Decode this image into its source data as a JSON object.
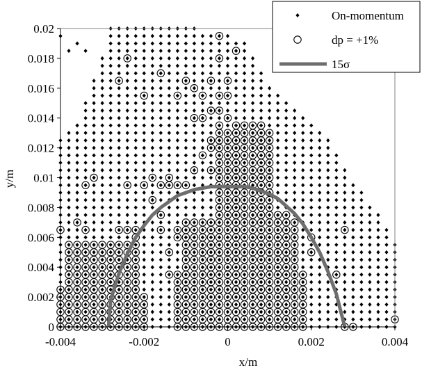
{
  "chart_data": {
    "type": "scatter",
    "title": "",
    "xlabel": "x/m",
    "ylabel": "y/m",
    "xlim": [
      -0.004,
      0.004
    ],
    "ylim": [
      0,
      0.02
    ],
    "grid": false,
    "legend_position": "top-right",
    "x_ticks": [
      "-0.004",
      "-0.002",
      "0",
      "0.002",
      "0.004"
    ],
    "y_ticks": [
      "0",
      "0.002",
      "0.004",
      "0.006",
      "0.008",
      "0.01",
      "0.012",
      "0.014",
      "0.016",
      "0.018",
      "0.02"
    ],
    "series": [
      {
        "name": "On-momentum",
        "marker": "diamond",
        "color": "#000000",
        "region_samples": "grid of points, dx=0.0002 m, dy=0.0005 m, filling the region under the envelope",
        "envelope": {
          "x": [
            -0.004,
            -0.0036,
            -0.0032,
            -0.0028,
            -0.0024,
            -0.002,
            -0.0016,
            -0.0012,
            -0.0008,
            -0.0004,
            0,
            0.0004,
            0.0008,
            0.0012,
            0.0016,
            0.002,
            0.0024,
            0.0028,
            0.0032,
            0.0036,
            0.004
          ],
          "y_max": [
            0.0125,
            0.0135,
            0.0165,
            0.02,
            0.02,
            0.02,
            0.02,
            0.02,
            0.02,
            0.0195,
            0.0195,
            0.019,
            0.017,
            0.0155,
            0.0145,
            0.0135,
            0.0125,
            0.0105,
            0.009,
            0.0075,
            0.0055
          ]
        },
        "extra_points": [
          {
            "x": -0.004,
            "y": 0.0195
          },
          {
            "x": -0.0038,
            "y": 0.0185
          },
          {
            "x": -0.0036,
            "y": 0.019
          },
          {
            "x": -0.0034,
            "y": 0.0185
          },
          {
            "x": -0.0024,
            "y": 0.019
          }
        ]
      },
      {
        "name": "dp = +1%",
        "marker": "circle",
        "color": "#000000",
        "blocks": [
          {
            "x": [
              -0.0038,
              -0.0024
            ],
            "y": [
              0,
              0.0055
            ],
            "dx": 0.0002,
            "dy": 0.0005
          },
          {
            "x": [
              -0.004,
              -0.004
            ],
            "y": [
              0,
              0.0025
            ],
            "dx": 0.0002,
            "dy": 0.0005
          },
          {
            "x": [
              -0.0022,
              -0.0022
            ],
            "y": [
              0,
              0.0065
            ],
            "dx": 0.0002,
            "dy": 0.0005
          },
          {
            "x": [
              -0.002,
              -0.002
            ],
            "y": [
              0,
              0.002
            ],
            "dx": 0.0002,
            "dy": 0.0005
          },
          {
            "x": [
              -0.0012,
              -0.0012
            ],
            "y": [
              0,
              0.0035
            ],
            "dx": 0.0002,
            "dy": 0.0005
          },
          {
            "x": [
              -0.001,
              0.0016
            ],
            "y": [
              0,
              0.007
            ],
            "dx": 0.0002,
            "dy": 0.0005
          },
          {
            "x": [
              -0.0002,
              0.001
            ],
            "y": [
              0.0075,
              0.013
            ],
            "dx": 0.0002,
            "dy": 0.0005
          },
          {
            "x": [
              0.0002,
              0.0008
            ],
            "y": [
              0.0135,
              0.0135
            ],
            "dx": 0.0002,
            "dy": 0.0005
          },
          {
            "x": [
              0.0018,
              0.0018
            ],
            "y": [
              0,
              0.0035
            ],
            "dx": 0.0002,
            "dy": 0.0005
          }
        ],
        "points": [
          {
            "x": -0.004,
            "y": 0.0065
          },
          {
            "x": -0.0036,
            "y": 0.007
          },
          {
            "x": -0.0034,
            "y": 0.0065
          },
          {
            "x": -0.0034,
            "y": 0.0095
          },
          {
            "x": -0.0032,
            "y": 0.01
          },
          {
            "x": -0.0026,
            "y": 0.0065
          },
          {
            "x": -0.0024,
            "y": 0.0065
          },
          {
            "x": -0.0024,
            "y": 0.0095
          },
          {
            "x": -0.002,
            "y": 0.0095
          },
          {
            "x": -0.0018,
            "y": 0.0085
          },
          {
            "x": -0.0018,
            "y": 0.01
          },
          {
            "x": -0.0016,
            "y": 0.0095
          },
          {
            "x": -0.0016,
            "y": 0.0075
          },
          {
            "x": -0.0016,
            "y": 0.0065
          },
          {
            "x": -0.0014,
            "y": 0.01
          },
          {
            "x": -0.0014,
            "y": 0.0095
          },
          {
            "x": -0.0014,
            "y": 0.005
          },
          {
            "x": -0.0014,
            "y": 0.0035
          },
          {
            "x": -0.0012,
            "y": 0.0095
          },
          {
            "x": -0.0012,
            "y": 0.0065
          },
          {
            "x": -0.0012,
            "y": 0.006
          },
          {
            "x": -0.001,
            "y": 0.0095
          },
          {
            "x": -0.0008,
            "y": 0.0105
          },
          {
            "x": -0.0006,
            "y": 0.0115
          },
          {
            "x": -0.0006,
            "y": 0.014
          },
          {
            "x": -0.0006,
            "y": 0.0155
          },
          {
            "x": -0.0004,
            "y": 0.0105
          },
          {
            "x": -0.0004,
            "y": 0.012
          },
          {
            "x": -0.0004,
            "y": 0.0125
          },
          {
            "x": -0.0004,
            "y": 0.0145
          },
          {
            "x": -0.0004,
            "y": 0.0165
          },
          {
            "x": -0.0002,
            "y": 0.0135
          },
          {
            "x": -0.0002,
            "y": 0.0145
          },
          {
            "x": -0.0002,
            "y": 0.0155
          },
          {
            "x": -0.0002,
            "y": 0.018
          },
          {
            "x": -0.0002,
            "y": 0.0195
          },
          {
            "x": 0,
            "y": 0.0165
          },
          {
            "x": 0,
            "y": 0.0155
          },
          {
            "x": 0,
            "y": 0.014
          },
          {
            "x": 0.0002,
            "y": 0.0185
          },
          {
            "x": 0.0012,
            "y": 0.0075
          },
          {
            "x": 0.0014,
            "y": 0.0075
          },
          {
            "x": 0.002,
            "y": 0.005
          },
          {
            "x": 0.002,
            "y": 0.006
          },
          {
            "x": 0.0026,
            "y": 0.0035
          },
          {
            "x": 0.0028,
            "y": 0.0065
          },
          {
            "x": 0.0028,
            "y": 0
          },
          {
            "x": 0.003,
            "y": 0
          },
          {
            "x": 0.004,
            "y": 0.0005
          },
          {
            "x": -0.001,
            "y": 0.0165
          },
          {
            "x": -0.0008,
            "y": 0.014
          },
          {
            "x": -0.0008,
            "y": 0.016
          },
          {
            "x": -0.0012,
            "y": 0.0155
          },
          {
            "x": -0.0016,
            "y": 0.017
          },
          {
            "x": -0.002,
            "y": 0.0155
          },
          {
            "x": -0.0024,
            "y": 0.018
          },
          {
            "x": -0.0026,
            "y": 0.0165
          }
        ]
      },
      {
        "name": "15σ",
        "marker": "line",
        "color": "#6e6e6e",
        "x": [
          -0.00285,
          -0.0028,
          -0.0026,
          -0.0024,
          -0.0022,
          -0.002,
          -0.0018,
          -0.0016,
          -0.0014,
          -0.0012,
          -0.001,
          -0.0008,
          -0.0006,
          -0.0004,
          -0.0002,
          0,
          0.0002,
          0.0004,
          0.0006,
          0.0008,
          0.001,
          0.0012,
          0.0014,
          0.0016,
          0.0018,
          0.002,
          0.0022,
          0.0024,
          0.0026,
          0.0028
        ],
        "y": [
          0,
          0.0018,
          0.0036,
          0.0049,
          0.006,
          0.0068,
          0.0075,
          0.008,
          0.0084,
          0.0088,
          0.009,
          0.0092,
          0.0093,
          0.0094,
          0.0094,
          0.0094,
          0.0094,
          0.0094,
          0.0093,
          0.0091,
          0.0089,
          0.0086,
          0.0081,
          0.0076,
          0.0069,
          0.006,
          0.005,
          0.0037,
          0.0022,
          0
        ]
      }
    ]
  },
  "legend": {
    "items": [
      {
        "label": "On-momentum",
        "marker": "diamond"
      },
      {
        "label": "dp = +1%",
        "marker": "circle"
      },
      {
        "label": "15σ",
        "marker": "line"
      }
    ]
  },
  "colors": {
    "marker": "#000000",
    "envelope_line": "#6e6e6e",
    "frame": "#808080"
  }
}
